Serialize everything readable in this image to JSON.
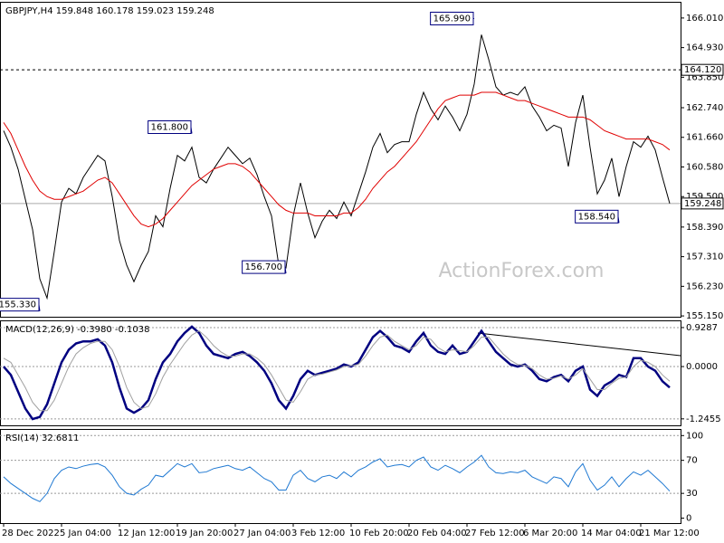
{
  "chart_data": [
    {
      "type": "line",
      "title": "GBPJPY,H4 159.848 160.178 159.023 159.248",
      "watermark": "ActionForex.com",
      "ylim": [
        155.12,
        166.6
      ],
      "yticks": [
        {
          "value": 166.01,
          "label": "166.010"
        },
        {
          "value": 164.93,
          "label": "164.930"
        },
        {
          "value": 163.85,
          "label": "163.850"
        },
        {
          "value": 162.74,
          "label": "162.740"
        },
        {
          "value": 161.66,
          "label": "161.660"
        },
        {
          "value": 160.58,
          "label": "160.580"
        },
        {
          "value": 159.5,
          "label": "159.500"
        },
        {
          "value": 158.39,
          "label": "158.390"
        },
        {
          "value": 157.31,
          "label": "157.310"
        },
        {
          "value": 156.23,
          "label": "156.230"
        },
        {
          "value": 155.15,
          "label": "155.150"
        }
      ],
      "series": [
        {
          "color": "#000000",
          "values": [
            161.9,
            161.3,
            160.5,
            159.4,
            158.3,
            156.5,
            155.8,
            157.5,
            159.3,
            159.8,
            159.6,
            160.2,
            160.6,
            161.0,
            160.8,
            159.5,
            157.9,
            157.0,
            156.4,
            157.0,
            157.5,
            158.8,
            158.4,
            159.8,
            161.0,
            160.8,
            161.3,
            160.2,
            160.0,
            160.5,
            160.9,
            161.3,
            161.0,
            160.7,
            160.9,
            160.3,
            159.5,
            158.8,
            157.0,
            156.9,
            158.8,
            160.0,
            158.9,
            158.0,
            158.6,
            159.0,
            158.7,
            159.3,
            158.8,
            159.6,
            160.4,
            161.3,
            161.8,
            161.1,
            161.4,
            161.5,
            161.5,
            162.5,
            163.3,
            162.7,
            162.3,
            162.8,
            162.4,
            161.9,
            162.5,
            163.6,
            165.4,
            164.5,
            163.5,
            163.2,
            163.3,
            163.2,
            163.5,
            162.8,
            162.4,
            161.9,
            162.1,
            162.0,
            160.6,
            162.2,
            163.2,
            161.3,
            159.6,
            160.1,
            160.9,
            159.5,
            160.6,
            161.5,
            161.3,
            161.7,
            161.2,
            160.2,
            159.25
          ]
        },
        {
          "color": "#e00000",
          "values": [
            162.2,
            161.8,
            161.2,
            160.6,
            160.1,
            159.7,
            159.5,
            159.4,
            159.4,
            159.5,
            159.6,
            159.7,
            159.9,
            160.1,
            160.2,
            160.0,
            159.6,
            159.2,
            158.8,
            158.5,
            158.4,
            158.5,
            158.7,
            159.0,
            159.3,
            159.6,
            159.9,
            160.1,
            160.3,
            160.5,
            160.6,
            160.7,
            160.7,
            160.6,
            160.4,
            160.1,
            159.8,
            159.5,
            159.2,
            159.0,
            158.9,
            158.9,
            158.9,
            158.8,
            158.8,
            158.8,
            158.8,
            158.9,
            158.9,
            159.1,
            159.4,
            159.8,
            160.1,
            160.4,
            160.6,
            160.9,
            161.2,
            161.5,
            161.9,
            162.3,
            162.7,
            163.0,
            163.1,
            163.2,
            163.2,
            163.2,
            163.3,
            163.3,
            163.3,
            163.2,
            163.1,
            163.0,
            163.0,
            162.9,
            162.8,
            162.7,
            162.6,
            162.5,
            162.4,
            162.4,
            162.4,
            162.3,
            162.1,
            161.9,
            161.8,
            161.7,
            161.6,
            161.6,
            161.6,
            161.6,
            161.5,
            161.4,
            161.2
          ]
        }
      ],
      "annotations": [
        {
          "label": "165.990",
          "value": 165.99,
          "index": 65
        },
        {
          "label": "161.800",
          "value": 161.8,
          "index": 26
        },
        {
          "label": "156.700",
          "value": 156.7,
          "index": 39
        },
        {
          "label": "155.330",
          "value": 155.33,
          "index": 5
        },
        {
          "label": "158.540",
          "value": 158.54,
          "index": 85
        }
      ],
      "levels": [
        {
          "label": "164.120",
          "value": 164.12,
          "style": "dashed"
        },
        {
          "label": "159.248",
          "value": 159.248,
          "style": "solid"
        }
      ]
    },
    {
      "type": "line",
      "title": "MACD(12,26,9) -0.3980 -0.1038",
      "ylim": [
        -1.4,
        1.1
      ],
      "yticks": [
        0.9287,
        {
          "value": 0,
          "label": "0.0000"
        },
        -1.2455
      ],
      "series": [
        {
          "color": "#000080",
          "values": [
            0,
            -0.2,
            -0.6,
            -1.0,
            -1.25,
            -1.2,
            -0.9,
            -0.4,
            0.1,
            0.4,
            0.55,
            0.6,
            0.6,
            0.65,
            0.5,
            0.1,
            -0.5,
            -1.0,
            -1.1,
            -1.0,
            -0.8,
            -0.3,
            0.1,
            0.3,
            0.6,
            0.8,
            0.95,
            0.8,
            0.5,
            0.3,
            0.25,
            0.2,
            0.3,
            0.35,
            0.25,
            0.1,
            -0.1,
            -0.4,
            -0.8,
            -1.0,
            -0.7,
            -0.3,
            -0.1,
            -0.2,
            -0.15,
            -0.1,
            -0.05,
            0.05,
            0,
            0.1,
            0.4,
            0.7,
            0.85,
            0.7,
            0.5,
            0.45,
            0.35,
            0.6,
            0.8,
            0.5,
            0.35,
            0.3,
            0.5,
            0.3,
            0.35,
            0.6,
            0.85,
            0.6,
            0.35,
            0.2,
            0.05,
            0,
            0.05,
            -0.1,
            -0.3,
            -0.35,
            -0.25,
            -0.2,
            -0.35,
            -0.1,
            0,
            -0.55,
            -0.7,
            -0.45,
            -0.35,
            -0.2,
            -0.25,
            0.2,
            0.2,
            0.0,
            -0.1,
            -0.35,
            -0.5
          ]
        },
        {
          "color": "#a0a0a0",
          "values": [
            0.2,
            0.1,
            -0.2,
            -0.5,
            -0.85,
            -1.05,
            -1.05,
            -0.8,
            -0.4,
            0,
            0.3,
            0.45,
            0.55,
            0.6,
            0.6,
            0.4,
            0,
            -0.5,
            -0.85,
            -1.0,
            -0.95,
            -0.65,
            -0.25,
            0.05,
            0.3,
            0.55,
            0.75,
            0.85,
            0.7,
            0.5,
            0.35,
            0.25,
            0.25,
            0.3,
            0.3,
            0.2,
            0.05,
            -0.2,
            -0.5,
            -0.8,
            -0.85,
            -0.6,
            -0.3,
            -0.2,
            -0.18,
            -0.13,
            -0.08,
            0,
            0.02,
            0.05,
            0.25,
            0.5,
            0.7,
            0.75,
            0.6,
            0.5,
            0.4,
            0.5,
            0.7,
            0.65,
            0.45,
            0.35,
            0.4,
            0.38,
            0.35,
            0.5,
            0.7,
            0.7,
            0.5,
            0.3,
            0.15,
            0.05,
            0.03,
            -0.05,
            -0.2,
            -0.3,
            -0.28,
            -0.22,
            -0.3,
            -0.2,
            -0.05,
            -0.3,
            -0.55,
            -0.55,
            -0.4,
            -0.28,
            -0.25,
            0,
            0.15,
            0.1,
            0,
            -0.2,
            -0.35
          ]
        }
      ]
    },
    {
      "type": "line",
      "title": "RSI(14) 32.6811",
      "ylim": [
        -6,
        108
      ],
      "yticks": [
        100,
        70,
        30,
        0
      ],
      "categories": [
        "28 Dec 2022",
        null,
        null,
        null,
        null,
        null,
        null,
        null,
        "5 Jan 04:00",
        null,
        null,
        null,
        null,
        null,
        null,
        null,
        "12 Jan 12:00",
        null,
        null,
        null,
        null,
        null,
        null,
        null,
        "19 Jan 20:00",
        null,
        null,
        null,
        null,
        null,
        null,
        null,
        "27 Jan 04:00",
        null,
        null,
        null,
        null,
        null,
        null,
        null,
        "3 Feb 12:00",
        null,
        null,
        null,
        null,
        null,
        null,
        null,
        "10 Feb 20:00",
        null,
        null,
        null,
        null,
        null,
        null,
        null,
        "20 Feb 04:00",
        null,
        null,
        null,
        null,
        null,
        null,
        null,
        "27 Feb 12:00",
        null,
        null,
        null,
        null,
        null,
        null,
        null,
        "6 Mar 20:00",
        null,
        null,
        null,
        null,
        null,
        null,
        null,
        "14 Mar 04:00",
        null,
        null,
        null,
        null,
        null,
        null,
        null,
        "21 Mar 12:00",
        null,
        null,
        null,
        null
      ],
      "series": [
        {
          "color": "#1e78d2",
          "values": [
            50,
            42,
            36,
            30,
            24,
            20,
            30,
            48,
            58,
            62,
            60,
            63,
            65,
            66,
            62,
            52,
            38,
            30,
            28,
            35,
            40,
            52,
            50,
            58,
            66,
            62,
            66,
            55,
            56,
            60,
            62,
            64,
            60,
            58,
            62,
            55,
            48,
            44,
            34,
            34,
            52,
            58,
            48,
            44,
            50,
            52,
            48,
            56,
            50,
            58,
            62,
            68,
            72,
            62,
            64,
            65,
            62,
            70,
            74,
            62,
            58,
            64,
            60,
            55,
            62,
            68,
            76,
            62,
            55,
            54,
            56,
            55,
            58,
            50,
            46,
            42,
            50,
            48,
            38,
            56,
            66,
            46,
            34,
            40,
            50,
            38,
            48,
            56,
            52,
            58,
            50,
            42,
            32.68
          ]
        }
      ]
    }
  ]
}
